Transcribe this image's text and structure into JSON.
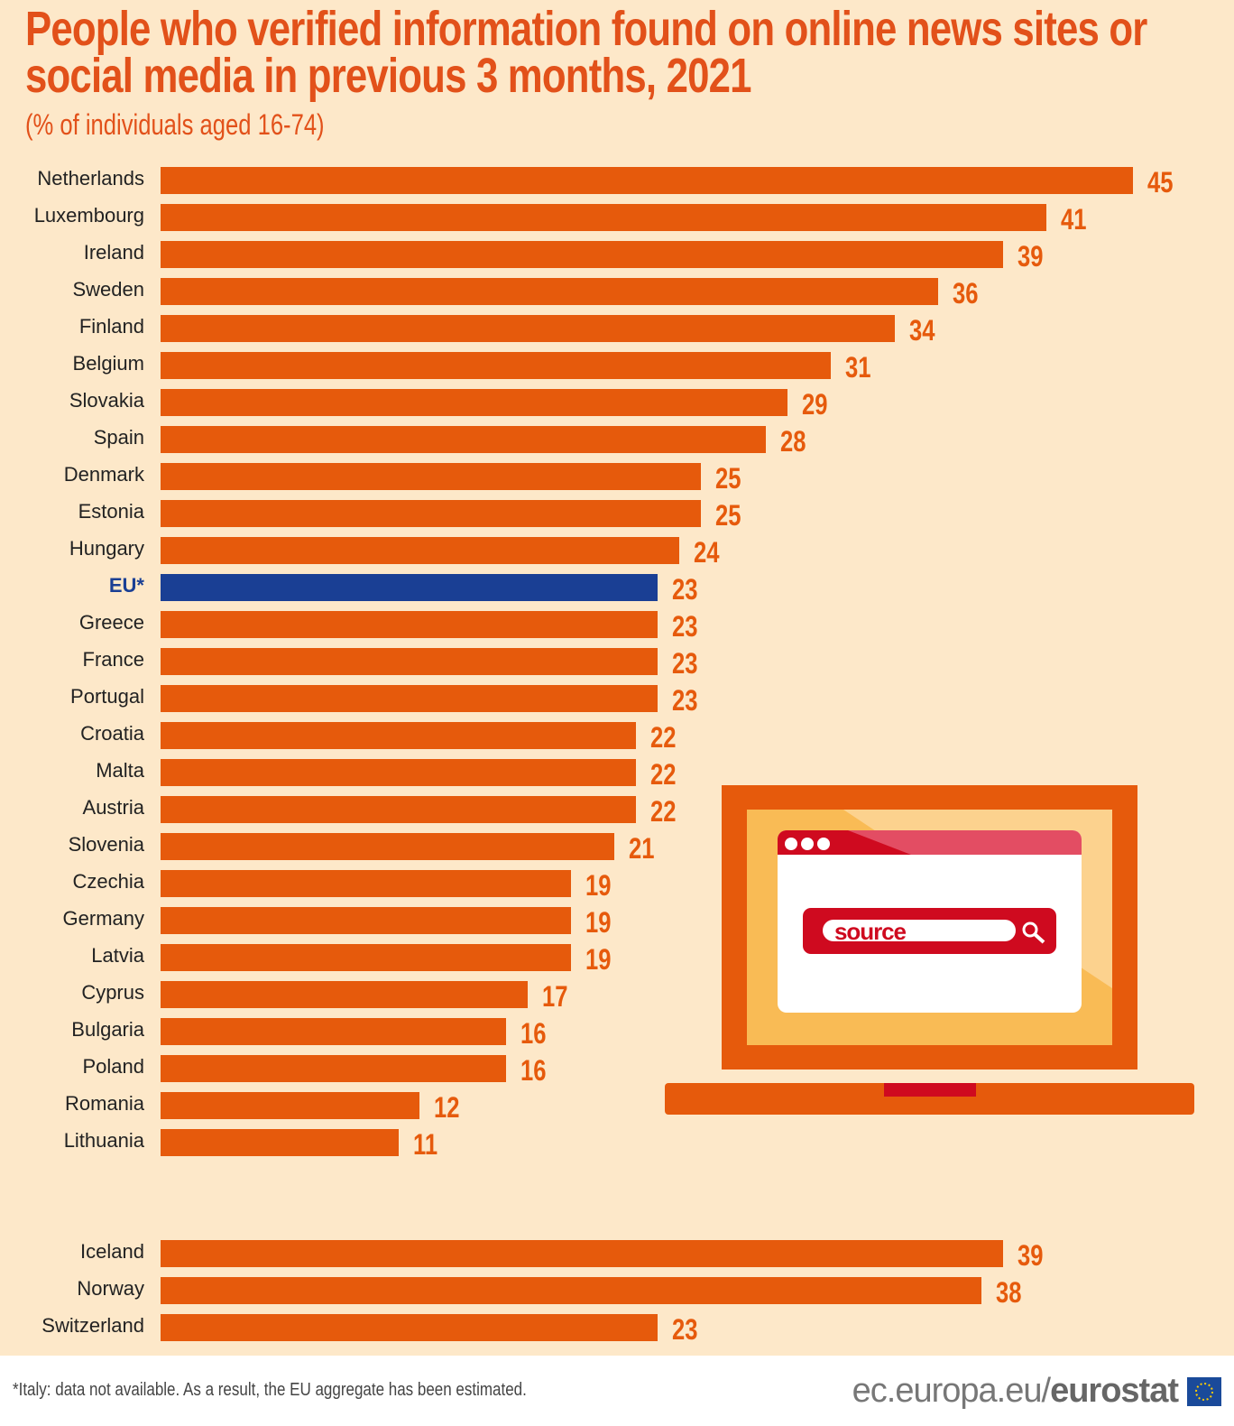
{
  "chart_data": {
    "type": "bar",
    "orientation": "horizontal",
    "title": "People who verified information found on online news sites or social media in previous 3 months, 2021",
    "subtitle": "(% of individuals aged 16-74)",
    "categories": [
      "Netherlands",
      "Luxembourg",
      "Ireland",
      "Sweden",
      "Finland",
      "Belgium",
      "Slovakia",
      "Spain",
      "Denmark",
      "Estonia",
      "Hungary",
      "EU*",
      "Greece",
      "France",
      "Portugal",
      "Croatia",
      "Malta",
      "Austria",
      "Slovenia",
      "Czechia",
      "Germany",
      "Latvia",
      "Cyprus",
      "Bulgaria",
      "Poland",
      "Romania",
      "Lithuania",
      "Iceland",
      "Norway",
      "Switzerland"
    ],
    "values": [
      45,
      41,
      39,
      36,
      34,
      31,
      29,
      28,
      25,
      25,
      24,
      23,
      23,
      23,
      23,
      22,
      22,
      22,
      21,
      19,
      19,
      19,
      17,
      16,
      16,
      12,
      11,
      39,
      38,
      23
    ],
    "highlight": "EU*",
    "colors": {
      "bar": "#e65a0c",
      "highlight": "#1a3f94",
      "label": "#e65a0c"
    },
    "xlim": [
      0,
      45
    ],
    "grid": false
  },
  "illustration": {
    "search_text": "source"
  },
  "footer": {
    "note": "*Italy: data not available. As a result, the EU aggregate has been estimated.",
    "logo_prefix": "ec.europa.eu/",
    "logo_brand": "eurostat"
  }
}
